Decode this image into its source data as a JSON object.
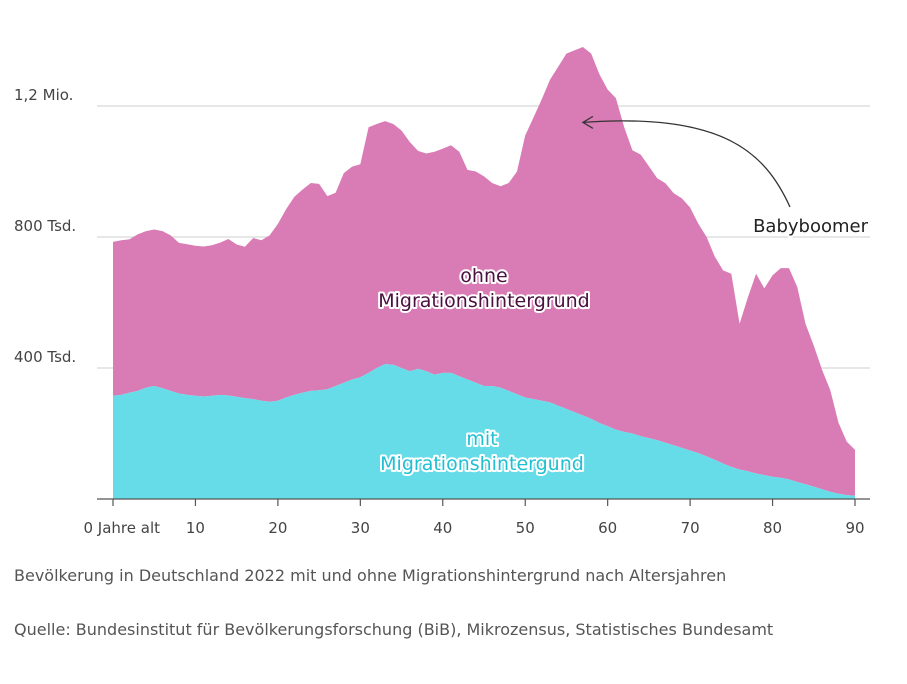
{
  "chart_data": {
    "type": "area",
    "stacked": true,
    "x": [
      0,
      1,
      2,
      3,
      4,
      5,
      6,
      7,
      8,
      9,
      10,
      11,
      12,
      13,
      14,
      15,
      16,
      17,
      18,
      19,
      20,
      21,
      22,
      23,
      24,
      25,
      26,
      27,
      28,
      29,
      30,
      31,
      32,
      33,
      34,
      35,
      36,
      37,
      38,
      39,
      40,
      41,
      42,
      43,
      44,
      45,
      46,
      47,
      48,
      49,
      50,
      51,
      52,
      53,
      54,
      55,
      56,
      57,
      58,
      59,
      60,
      61,
      62,
      63,
      64,
      65,
      66,
      67,
      68,
      69,
      70,
      71,
      72,
      73,
      74,
      75,
      76,
      77,
      78,
      79,
      80,
      81,
      82,
      83,
      84,
      85,
      86,
      87,
      88,
      89,
      90
    ],
    "series": [
      {
        "name": "mit Migrationshintergund",
        "color": "#66dce8",
        "values": [
          315,
          318,
          325,
          330,
          340,
          345,
          338,
          330,
          322,
          318,
          315,
          313,
          315,
          318,
          316,
          312,
          308,
          305,
          300,
          297,
          300,
          310,
          318,
          325,
          330,
          332,
          335,
          345,
          355,
          365,
          372,
          385,
          400,
          412,
          410,
          400,
          390,
          398,
          390,
          380,
          385,
          385,
          375,
          365,
          355,
          345,
          345,
          340,
          330,
          320,
          310,
          305,
          300,
          295,
          285,
          275,
          265,
          255,
          245,
          232,
          222,
          212,
          205,
          200,
          192,
          186,
          180,
          172,
          164,
          156,
          148,
          140,
          130,
          120,
          108,
          98,
          90,
          85,
          78,
          73,
          68,
          65,
          60,
          52,
          45,
          38,
          30,
          22,
          16,
          12,
          10
        ]
      },
      {
        "name": "ohne Migrationshintergrund",
        "color": "#d97bb4",
        "values": [
          470,
          472,
          468,
          478,
          478,
          478,
          480,
          475,
          460,
          460,
          458,
          458,
          460,
          465,
          478,
          465,
          462,
          492,
          490,
          508,
          540,
          575,
          605,
          620,
          635,
          630,
          590,
          590,
          640,
          650,
          650,
          750,
          745,
          742,
          735,
          725,
          700,
          665,
          665,
          680,
          685,
          695,
          685,
          640,
          645,
          640,
          620,
          615,
          635,
          680,
          800,
          860,
          920,
          985,
          1035,
          1085,
          1105,
          1125,
          1115,
          1065,
          1028,
          1012,
          930,
          865,
          860,
          830,
          800,
          792,
          770,
          762,
          742,
          700,
          670,
          620,
          590,
          590,
          445,
          530,
          610,
          570,
          615,
          640,
          645,
          595,
          490,
          430,
          365,
          310,
          217,
          163,
          140
        ]
      }
    ],
    "xticks": [
      {
        "value": 0,
        "label": "0 Jahre alt"
      },
      {
        "value": 10,
        "label": "10"
      },
      {
        "value": 20,
        "label": "20"
      },
      {
        "value": 30,
        "label": "30"
      },
      {
        "value": 40,
        "label": "40"
      },
      {
        "value": 50,
        "label": "50"
      },
      {
        "value": 60,
        "label": "60"
      },
      {
        "value": 70,
        "label": "70"
      },
      {
        "value": 80,
        "label": "80"
      },
      {
        "value": 90,
        "label": "90"
      }
    ],
    "yticks": [
      {
        "value": 400,
        "label": "400 Tsd."
      },
      {
        "value": 800,
        "label": "800 Tsd."
      },
      {
        "value": 1200,
        "label": "1,2 Mio."
      }
    ],
    "xlim": [
      0,
      90
    ],
    "ylim": [
      0,
      1400
    ],
    "grid": true,
    "series_labels": {
      "ohne_line1": "ohne",
      "ohne_line2": "Migrationshintergrund",
      "mit_line1": "mit",
      "mit_line2": "Migrationshintergund"
    },
    "annotation": {
      "text": "Babyboomer",
      "target_x": 57,
      "target_y": 1150
    }
  },
  "caption": {
    "description": "Bevölkerung in Deutschland 2022 mit und ohne Migrationshintergrund nach Altersjahren",
    "source": "Quelle: Bundesinstitut für Bevölkerungsforschung (BiB), Mikrozensus, Statistisches Bundesamt"
  }
}
